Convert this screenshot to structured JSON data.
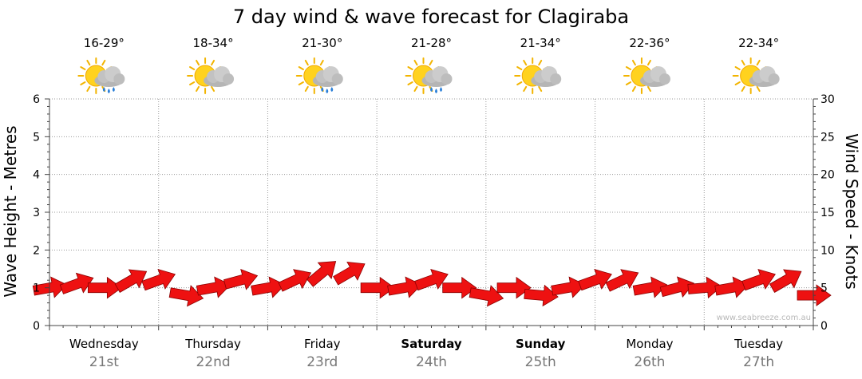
{
  "chart_data": {
    "type": "line",
    "title": "7 day wind & wave forecast for Clagiraba",
    "ylabel": "Wave Height - Metres",
    "y2label": "Wind Speed - Knots",
    "ylim": [
      0,
      6
    ],
    "y2lim": [
      0,
      30
    ],
    "yticks": [
      "0",
      "1",
      "2",
      "3",
      "4",
      "5",
      "6"
    ],
    "y2ticks": [
      "0",
      "5",
      "10",
      "15",
      "20",
      "25",
      "30"
    ],
    "grid": true,
    "days": [
      {
        "name": "Wednesday",
        "date": "21st",
        "temp": "16-29°",
        "weather": "showers-icon",
        "bold": false
      },
      {
        "name": "Thursday",
        "date": "22nd",
        "temp": "18-34°",
        "weather": "partly-cloudy-icon",
        "bold": false
      },
      {
        "name": "Friday",
        "date": "23rd",
        "temp": "21-30°",
        "weather": "showers-icon",
        "bold": false
      },
      {
        "name": "Saturday",
        "date": "24th",
        "temp": "21-28°",
        "weather": "showers-icon",
        "bold": true
      },
      {
        "name": "Sunday",
        "date": "25th",
        "temp": "21-34°",
        "weather": "partly-cloudy-icon",
        "bold": true
      },
      {
        "name": "Monday",
        "date": "26th",
        "temp": "22-36°",
        "weather": "partly-cloudy-icon",
        "bold": false
      },
      {
        "name": "Tuesday",
        "date": "27th",
        "temp": "22-34°",
        "weather": "partly-cloudy-icon",
        "bold": false
      }
    ],
    "series": [
      {
        "type": "wind-arrows",
        "x_days": [
          0.0,
          0.25,
          0.5,
          0.75,
          1.0,
          1.25,
          1.5,
          1.75,
          2.0,
          2.25,
          2.5,
          2.75,
          3.0,
          3.25,
          3.5,
          3.75,
          4.0,
          4.25,
          4.5,
          4.75,
          5.0,
          5.25,
          5.5,
          5.75,
          6.0,
          6.25,
          6.5,
          6.75,
          7.0
        ],
        "values": [
          5,
          5.5,
          5,
          6,
          6,
          4,
          5,
          6,
          5,
          6,
          7,
          7,
          5,
          5,
          6,
          5,
          4,
          5,
          4,
          5,
          6,
          6,
          5,
          5,
          5,
          5,
          6,
          6,
          4
        ],
        "direction_deg": [
          80,
          70,
          90,
          60,
          70,
          100,
          80,
          75,
          80,
          65,
          50,
          60,
          90,
          80,
          70,
          90,
          100,
          90,
          95,
          80,
          70,
          65,
          80,
          75,
          85,
          80,
          70,
          60,
          90
        ]
      }
    ],
    "color": "#ee1111",
    "watermark": "www.seabreeze.com.au"
  }
}
